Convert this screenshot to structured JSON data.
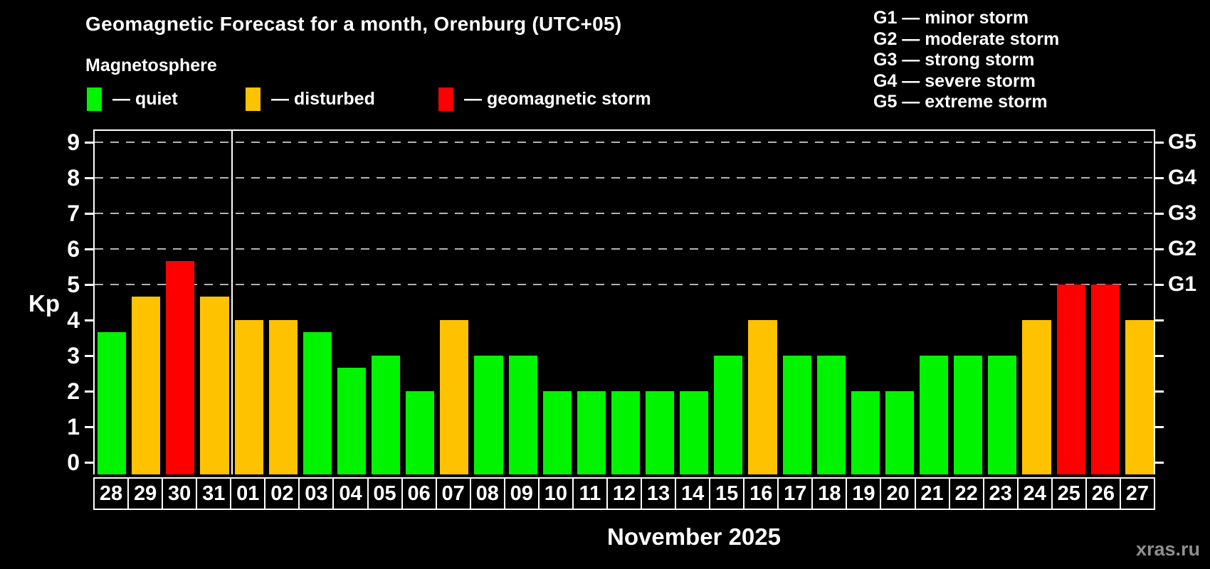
{
  "header": {
    "title": "Geomagnetic Forecast for a month, Orenburg (UTC+05)",
    "subtitle": "Magnetosphere"
  },
  "legend": {
    "items": [
      {
        "key": "quiet",
        "label": "— quiet",
        "color": "#00f400"
      },
      {
        "key": "disturbed",
        "label": "— disturbed",
        "color": "#ffc200"
      },
      {
        "key": "storm",
        "label": "— geomagnetic storm",
        "color": "#ff0000"
      }
    ]
  },
  "storm_scale_legend": {
    "lines": [
      "G1 — minor storm",
      "G2 — moderate storm",
      "G3 — strong storm",
      "G4 — severe storm",
      "G5 — extreme storm"
    ]
  },
  "chart_data": {
    "type": "bar",
    "title": "Geomagnetic Forecast for a month, Orenburg (UTC+05)",
    "ylabel": "Kp",
    "xlabel": "November 2025",
    "ylim": [
      0,
      9.5
    ],
    "yticks": [
      0,
      1,
      2,
      3,
      4,
      5,
      6,
      7,
      8,
      9
    ],
    "gridlines_at": [
      5,
      6,
      7,
      8,
      9
    ],
    "grid": "dashed horizontal at storm levels only",
    "legend_position": "top",
    "right_axis": [
      {
        "label": "G1",
        "value": 5
      },
      {
        "label": "G2",
        "value": 6
      },
      {
        "label": "G3",
        "value": 7
      },
      {
        "label": "G4",
        "value": 8
      },
      {
        "label": "G5",
        "value": 9
      }
    ],
    "month_separator_after_index": 3,
    "categories": [
      "28",
      "29",
      "30",
      "31",
      "01",
      "02",
      "03",
      "04",
      "05",
      "06",
      "07",
      "08",
      "09",
      "10",
      "11",
      "12",
      "13",
      "14",
      "15",
      "16",
      "17",
      "18",
      "19",
      "20",
      "21",
      "22",
      "23",
      "24",
      "25",
      "26",
      "27"
    ],
    "values": [
      3.67,
      4.67,
      5.67,
      4.67,
      4,
      4,
      3.67,
      2.67,
      3,
      2,
      4,
      3,
      3,
      2,
      2,
      2,
      2,
      2,
      3,
      4,
      3,
      3,
      2,
      2,
      3,
      3,
      3,
      4,
      5,
      5,
      4
    ],
    "status": [
      "quiet",
      "disturbed",
      "storm",
      "disturbed",
      "disturbed",
      "disturbed",
      "quiet",
      "quiet",
      "quiet",
      "quiet",
      "disturbed",
      "quiet",
      "quiet",
      "quiet",
      "quiet",
      "quiet",
      "quiet",
      "quiet",
      "quiet",
      "disturbed",
      "quiet",
      "quiet",
      "quiet",
      "quiet",
      "quiet",
      "quiet",
      "quiet",
      "disturbed",
      "storm",
      "storm",
      "disturbed"
    ],
    "status_colors": {
      "quiet": "#00f400",
      "disturbed": "#ffc200",
      "storm": "#ff0000"
    }
  },
  "footer": {
    "xlabel": "November 2025",
    "watermark": "xras.ru"
  },
  "colors": {
    "background": "#000000",
    "axis": "#ffffff",
    "gridline": "#b3b3b3",
    "watermark": "#8f8f8f"
  }
}
